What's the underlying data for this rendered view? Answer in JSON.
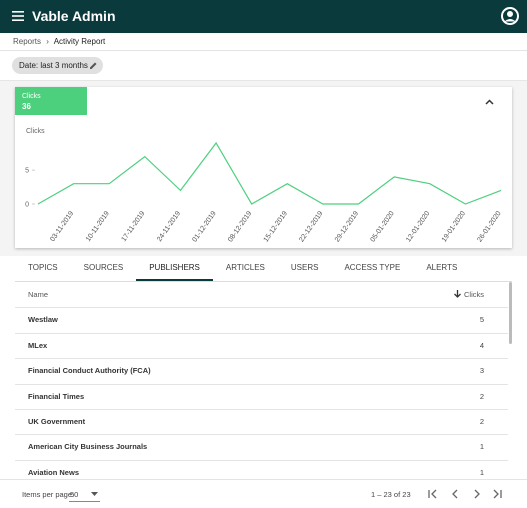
{
  "header": {
    "title": "Vable Admin"
  },
  "breadcrumb": [
    "Reports",
    "Activity Report"
  ],
  "filter_chip": "Date: last 3 months",
  "summary": {
    "label": "Clicks",
    "value": "36"
  },
  "chart_data": {
    "type": "line",
    "ylabel": "Clicks",
    "categories": [
      null,
      "03-11-2019",
      "10-11-2019",
      "17-11-2019",
      "24-11-2019",
      "01-12-2019",
      "08-12-2019",
      "15-12-2019",
      "22-12-2019",
      "29-12-2019",
      "05-01-2020",
      "12-01-2020",
      "19-01-2020",
      "26-01-2020"
    ],
    "series": [
      {
        "name": "Clicks",
        "color": "#4cd07d",
        "values": [
          0,
          3,
          3,
          7,
          2,
          9,
          0,
          3,
          0,
          0,
          4,
          3,
          0,
          2
        ]
      }
    ],
    "ylim": [
      0,
      9
    ],
    "yticks": [
      0,
      5
    ],
    "grid": false
  },
  "tabs": [
    "TOPICS",
    "SOURCES",
    "PUBLISHERS",
    "ARTICLES",
    "USERS",
    "ACCESS TYPE",
    "ALERTS"
  ],
  "table": {
    "columns": [
      "Name",
      "Clicks"
    ],
    "rows": [
      [
        "Westlaw",
        5
      ],
      [
        "MLex",
        4
      ],
      [
        "Financial Conduct Authority (FCA)",
        3
      ],
      [
        "Financial Times",
        2
      ],
      [
        "UK Government",
        2
      ],
      [
        "American City Business Journals",
        1
      ],
      [
        "Aviation News",
        1
      ]
    ]
  },
  "paginator": {
    "items_label": "Items per page:",
    "page_size": "50",
    "range": "1 – 23 of 23"
  }
}
